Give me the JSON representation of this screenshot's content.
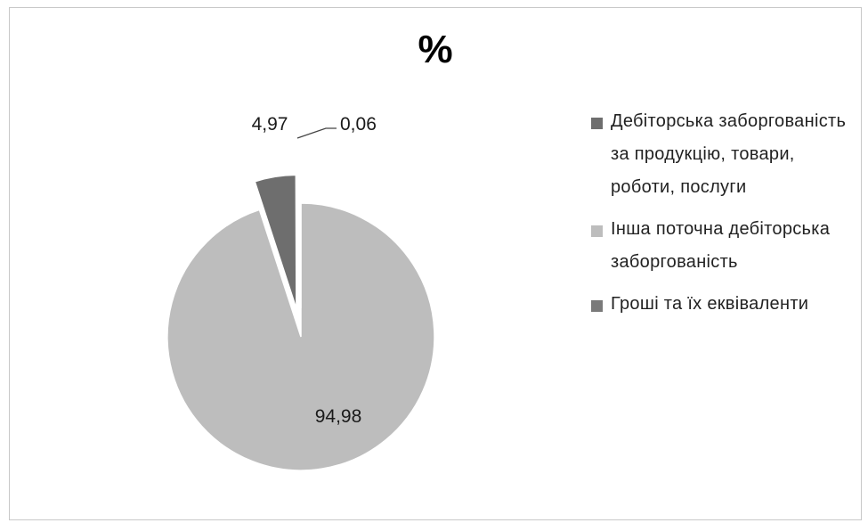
{
  "chart_data": {
    "type": "pie",
    "title": "%",
    "categories": [
      "Дебіторська заборгованість за продукцію, товари, роботи, послуги",
      "Інша поточна дебіторська заборгованість",
      "Гроші та їх еквіваленти"
    ],
    "values": [
      4.97,
      94.98,
      0.06
    ],
    "data_labels": [
      "4,97",
      "94,98",
      "0,06"
    ],
    "colors": [
      "#6e6e6e",
      "#bdbdbd",
      "#7a7a7a"
    ],
    "exploded": true,
    "legend_position": "right"
  }
}
